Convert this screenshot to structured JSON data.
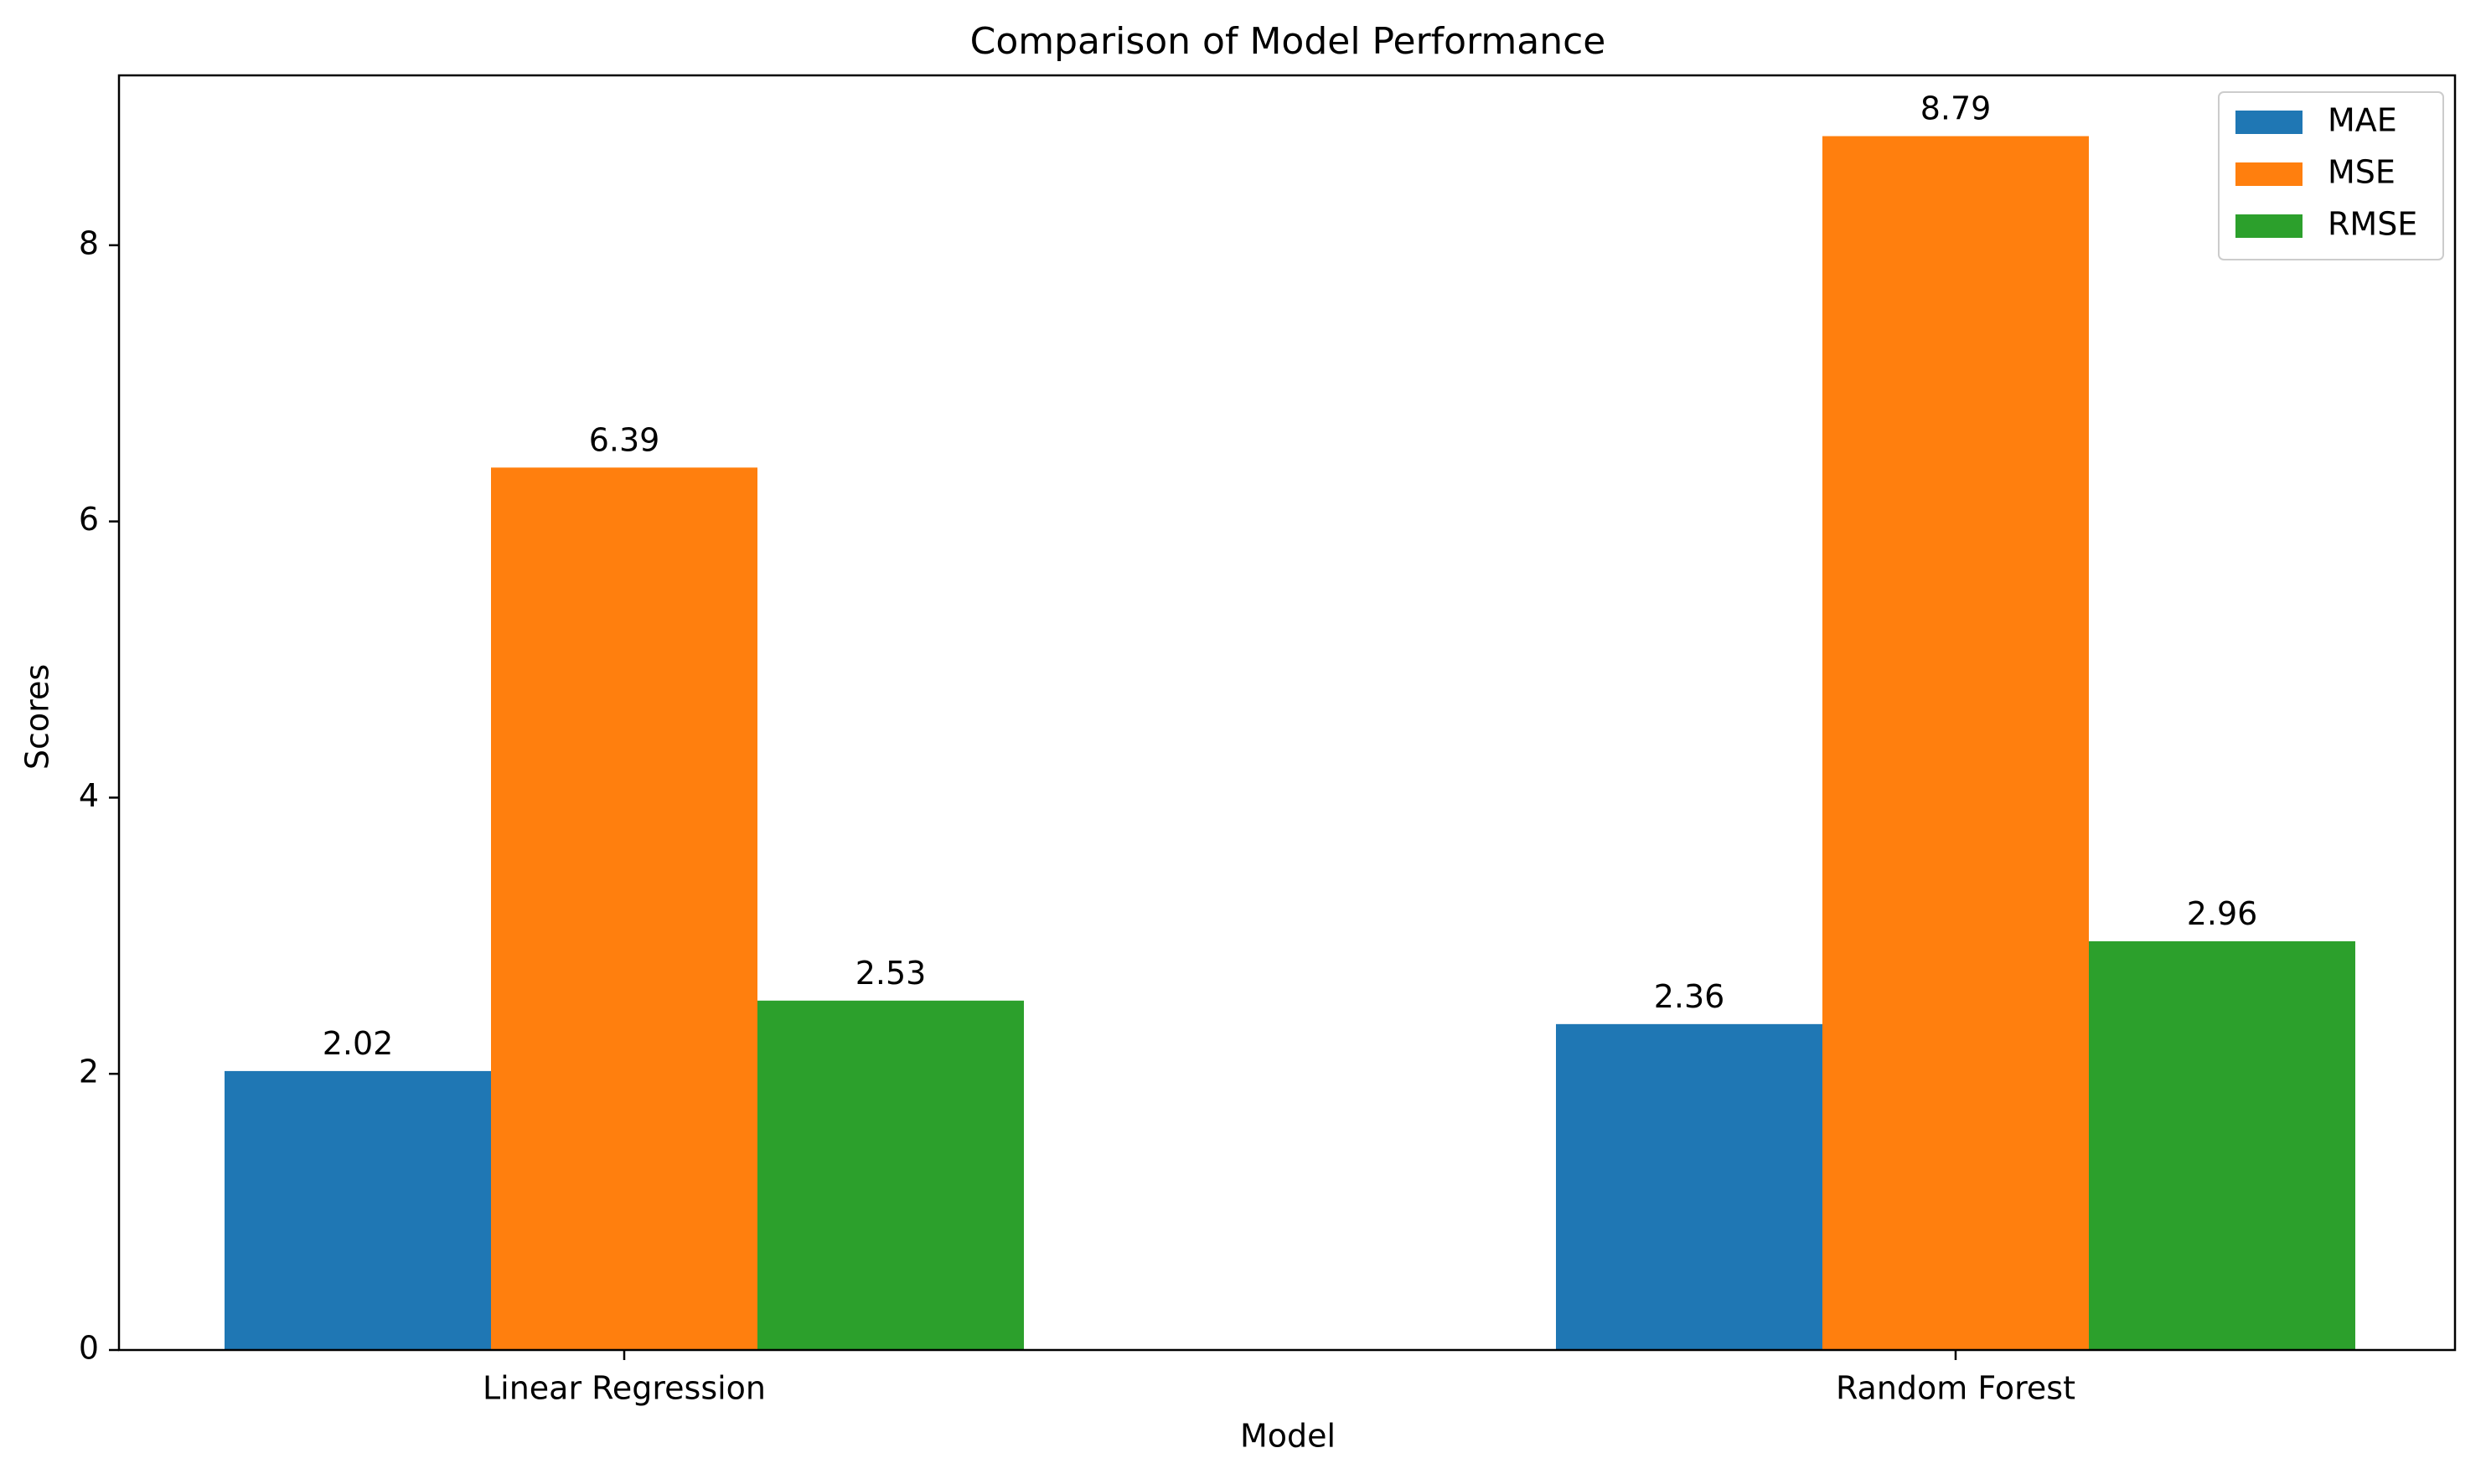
{
  "chart_data": {
    "type": "bar",
    "title": "Comparison of Model Performance",
    "xlabel": "Model",
    "ylabel": "Scores",
    "categories": [
      "Linear Regression",
      "Random Forest"
    ],
    "series": [
      {
        "name": "MAE",
        "values": [
          2.02,
          2.36
        ],
        "color": "#1f77b4"
      },
      {
        "name": "MSE",
        "values": [
          6.39,
          8.79
        ],
        "color": "#ff7f0e"
      },
      {
        "name": "RMSE",
        "values": [
          2.53,
          2.96
        ],
        "color": "#2ca02c"
      }
    ],
    "value_labels": [
      [
        "2.02",
        "2.36"
      ],
      [
        "6.39",
        "8.79"
      ],
      [
        "2.53",
        "2.96"
      ]
    ],
    "ylim": [
      0,
      9.23
    ],
    "yticks": [
      0,
      2,
      4,
      6,
      8
    ],
    "ytick_labels": [
      "0",
      "2",
      "4",
      "6",
      "8"
    ],
    "grid": false,
    "legend_position": "top-right"
  }
}
